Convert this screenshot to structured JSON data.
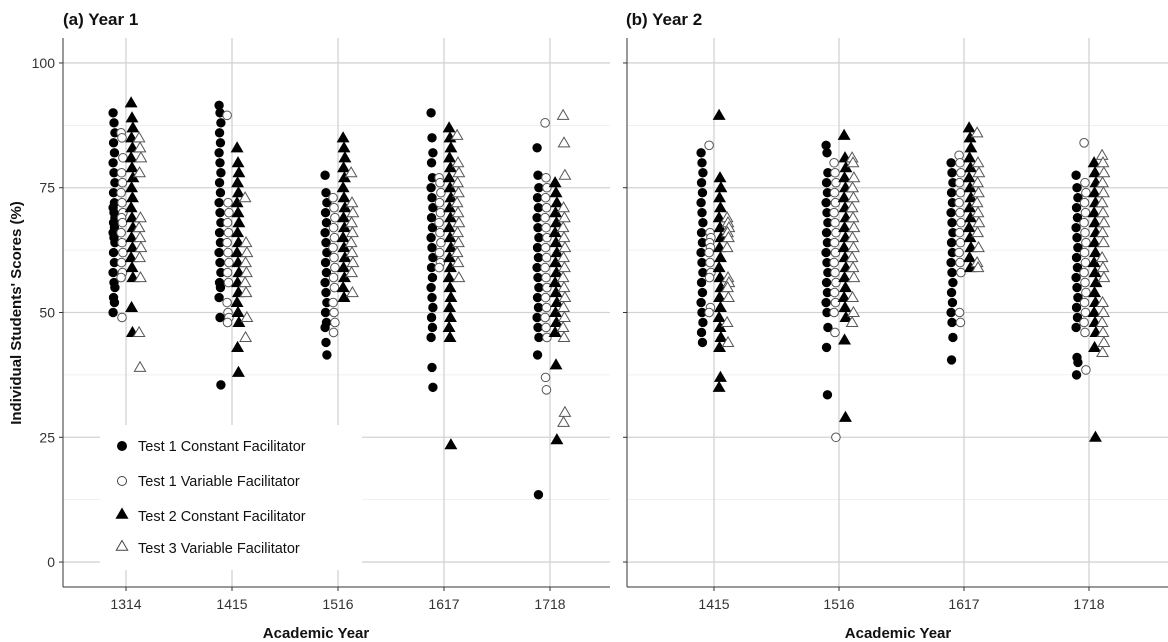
{
  "chart_data": [
    {
      "type": "scatter",
      "panel": "a",
      "title": "(a) Year 1",
      "xlabel": "Academic Year",
      "ylabel": "Individual Students' Scores (%)",
      "ylim": [
        0,
        100
      ],
      "yticks": [
        0,
        25,
        50,
        75,
        100
      ],
      "categories": [
        "1314",
        "1415",
        "1516",
        "1617",
        "1718"
      ],
      "legend": {
        "placement": "bottom-left",
        "entries": [
          "Test 1 Constant Facilitator",
          "Test 1 Variable Facilitator",
          "Test 2 Constant Facilitator",
          "Test 3 Variable Facilitator"
        ]
      },
      "series": [
        {
          "name": "Test 1 Constant Facilitator",
          "marker": "filled-circle",
          "data": {
            "1314": [
              90,
              88,
              86,
              84,
              82,
              80,
              78,
              76,
              74,
              72,
              71,
              70,
              69,
              68,
              67,
              66,
              65,
              64,
              62,
              60,
              58,
              56,
              55,
              53,
              52,
              50
            ],
            "1415": [
              91.5,
              90,
              88,
              86,
              84,
              82,
              80,
              78,
              76,
              74,
              72,
              70,
              68,
              66,
              64,
              62,
              60,
              58,
              56,
              55,
              53,
              49,
              35.5
            ],
            "1516": [
              77.5,
              74,
              72,
              70,
              68,
              66,
              64,
              62,
              60,
              58,
              56,
              54,
              52,
              50,
              48,
              47,
              44,
              41.5
            ],
            "1617": [
              90,
              85,
              82,
              80,
              77,
              75,
              73,
              71,
              69,
              67,
              65,
              63,
              61,
              59,
              57,
              55,
              53,
              51,
              49,
              47,
              45,
              39,
              35
            ],
            "1718": [
              83,
              77.5,
              75,
              73,
              71,
              69,
              67,
              65,
              63,
              61,
              59,
              57,
              55,
              53,
              51,
              49,
              47,
              45,
              41.5,
              13.5
            ]
          }
        },
        {
          "name": "Test 1 Variable Facilitator",
          "marker": "open-circle",
          "data": {
            "1314": [
              86,
              85,
              81,
              78,
              76,
              74,
              72,
              70,
              69,
              68,
              66,
              64,
              62,
              60,
              58,
              57,
              49
            ],
            "1415": [
              89.5,
              72,
              70,
              68,
              66,
              64,
              62,
              60,
              58,
              56,
              52,
              50,
              49,
              48
            ],
            "1516": [
              73,
              71,
              69,
              67,
              65,
              63,
              61,
              59,
              57,
              55,
              52,
              50,
              48,
              46
            ],
            "1617": [
              77,
              76,
              74,
              72,
              70,
              68,
              66,
              64,
              62,
              60,
              59
            ],
            "1718": [
              88,
              77,
              75,
              73,
              71,
              69,
              67,
              65,
              63,
              61,
              59,
              57,
              55,
              53,
              51,
              49,
              47,
              45,
              37,
              34.5
            ]
          }
        },
        {
          "name": "Test 2 Constant Facilitator",
          "marker": "filled-triangle",
          "data": {
            "1314": [
              92,
              89,
              87,
              85,
              83,
              81,
              79,
              77,
              75,
              73,
              71,
              69,
              67,
              65,
              63,
              61,
              59,
              57,
              51,
              46
            ],
            "1415": [
              83,
              80,
              78,
              76,
              74,
              72,
              70,
              68,
              66,
              64,
              62,
              60,
              58,
              56,
              54,
              52,
              50,
              48,
              43,
              38
            ],
            "1516": [
              85,
              83,
              81,
              79,
              77,
              75,
              73,
              71,
              69,
              67,
              65,
              63,
              61,
              59,
              57,
              55,
              53
            ],
            "1617": [
              87,
              85,
              83,
              81,
              79,
              77,
              75,
              73,
              71,
              69,
              67,
              65,
              63,
              61,
              59,
              57,
              55,
              53,
              51,
              49,
              47,
              45,
              23.5
            ],
            "1718": [
              76,
              74,
              72,
              70,
              68,
              66,
              64,
              62,
              60,
              58,
              56,
              54,
              52,
              50,
              48,
              46,
              39.5,
              24.5
            ]
          }
        },
        {
          "name": "Test 3 Variable Facilitator",
          "marker": "open-triangle",
          "data": {
            "1314": [
              85,
              83,
              81,
              78,
              69,
              67,
              65,
              63,
              61,
              57,
              46,
              39
            ],
            "1415": [
              73,
              64,
              62,
              60,
              58,
              56,
              54,
              49,
              45
            ],
            "1516": [
              78,
              72,
              70,
              68,
              66,
              64,
              62,
              60,
              58,
              54
            ],
            "1617": [
              85.5,
              80,
              78,
              76,
              74,
              72,
              70,
              68,
              66,
              64,
              62,
              60,
              57
            ],
            "1718": [
              89.5,
              84,
              77.5,
              71,
              69,
              67,
              65,
              63,
              61,
              59,
              57,
              55,
              53,
              51,
              49,
              47,
              45,
              30,
              28
            ]
          }
        }
      ]
    },
    {
      "type": "scatter",
      "panel": "b",
      "title": "(b) Year 2",
      "xlabel": "Academic Year",
      "ylabel": "",
      "ylim": [
        0,
        100
      ],
      "yticks": [
        0,
        25,
        50,
        75,
        100
      ],
      "categories": [
        "1415",
        "1516",
        "1617",
        "1718"
      ],
      "series": [
        {
          "name": "Test 1 Constant Facilitator",
          "marker": "filled-circle",
          "data": {
            "1415": [
              82,
              80,
              78,
              76,
              74,
              72,
              70,
              68,
              66,
              64,
              62,
              60,
              58,
              56,
              54,
              52,
              50,
              48,
              46,
              44
            ],
            "1516": [
              83.5,
              82,
              78,
              76,
              74,
              72,
              70,
              68,
              66,
              64,
              62,
              60,
              58,
              56,
              54,
              52,
              50,
              47,
              43,
              33.5
            ],
            "1617": [
              80,
              78,
              76,
              74,
              72,
              70,
              68,
              66,
              64,
              62,
              60,
              58,
              56,
              54,
              52,
              50,
              48,
              45,
              40.5
            ],
            "1718": [
              77.5,
              75,
              73,
              71,
              69,
              67,
              65,
              63,
              61,
              59,
              57,
              55,
              53,
              51,
              49,
              47,
              41,
              40,
              37.5
            ]
          }
        },
        {
          "name": "Test 1 Variable Facilitator",
          "marker": "open-circle",
          "data": {
            "1415": [
              83.5,
              66,
              65,
              64,
              63,
              62,
              60,
              58,
              57,
              51,
              50
            ],
            "1516": [
              80,
              78,
              76,
              74,
              72,
              70,
              68,
              66,
              64,
              62,
              60,
              58,
              56,
              54,
              52,
              50,
              46,
              25
            ],
            "1617": [
              81.5,
              80,
              78,
              76,
              74,
              72,
              70,
              68,
              66,
              64,
              62,
              60,
              58,
              50,
              48
            ],
            "1718": [
              84,
              76,
              74,
              72,
              70,
              68,
              66,
              64,
              62,
              60,
              58,
              56,
              54,
              52,
              50,
              48,
              46,
              38.5
            ]
          }
        },
        {
          "name": "Test 2 Constant Facilitator",
          "marker": "filled-triangle",
          "data": {
            "1415": [
              89.5,
              77,
              75,
              73,
              71,
              69,
              67,
              65,
              63,
              61,
              59,
              57,
              55,
              53,
              51,
              49,
              47,
              45,
              43,
              37,
              35
            ],
            "1516": [
              85.5,
              81,
              79,
              77,
              75,
              73,
              71,
              69,
              67,
              65,
              63,
              61,
              59,
              57,
              55,
              53,
              51,
              49,
              44.5,
              29
            ],
            "1617": [
              87,
              85,
              83,
              81,
              79,
              77,
              75,
              73,
              71,
              69,
              67,
              65,
              63,
              61,
              59
            ],
            "1718": [
              80,
              78,
              76,
              74,
              72,
              70,
              68,
              66,
              64,
              62,
              60,
              58,
              56,
              54,
              52,
              50,
              48,
              46,
              43,
              25
            ]
          }
        },
        {
          "name": "Test 3 Variable Facilitator",
          "marker": "open-triangle",
          "data": {
            "1415": [
              69,
              68,
              67,
              66,
              65,
              63,
              57,
              56,
              55,
              53,
              48,
              44
            ],
            "1516": [
              81,
              80,
              77,
              75,
              73,
              71,
              69,
              67,
              65,
              63,
              61,
              59,
              57,
              53,
              50,
              48
            ],
            "1617": [
              86,
              80,
              78,
              76,
              74,
              72,
              70,
              68,
              66,
              63,
              60,
              59
            ],
            "1718": [
              81.5,
              80,
              78,
              76,
              74,
              72,
              70,
              68,
              66,
              64,
              61,
              59,
              57,
              52,
              50,
              48,
              46,
              44,
              42
            ]
          }
        }
      ]
    }
  ]
}
